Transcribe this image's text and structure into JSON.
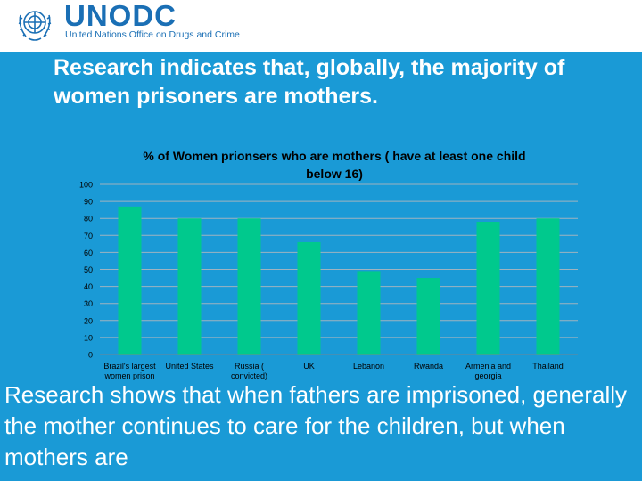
{
  "brand": {
    "name": "UNODC",
    "subtitle": "United Nations Office on Drugs and Crime"
  },
  "headline": "Research indicates that, globally, the majority of women prisoners are mothers.",
  "body_text": "Research shows  that when fathers are imprisoned, generally the mother continues to care for the children, but when mothers are",
  "colors": {
    "background": "#1a9ad6",
    "bar": "#00c98d",
    "brand": "#1a6fb5"
  },
  "chart_data": {
    "type": "bar",
    "title": "% of Women prionsers who are mothers ( have at least one child below 16)",
    "categories": [
      [
        "Brazil's largest",
        "women prison"
      ],
      [
        "United States"
      ],
      [
        "Russia (",
        "convicted)"
      ],
      [
        "UK"
      ],
      [
        "Lebanon"
      ],
      [
        "Rwanda"
      ],
      [
        "Armenia and",
        "georgia"
      ],
      [
        "Thailand"
      ]
    ],
    "values": [
      87,
      80,
      80,
      66,
      49,
      45,
      78,
      80
    ],
    "ylim": [
      0,
      100
    ],
    "yticks": [
      "0",
      "10",
      "20",
      "30",
      "40",
      "50",
      "60",
      "70",
      "80",
      "90",
      "100"
    ],
    "grid": true,
    "legend": "none"
  }
}
